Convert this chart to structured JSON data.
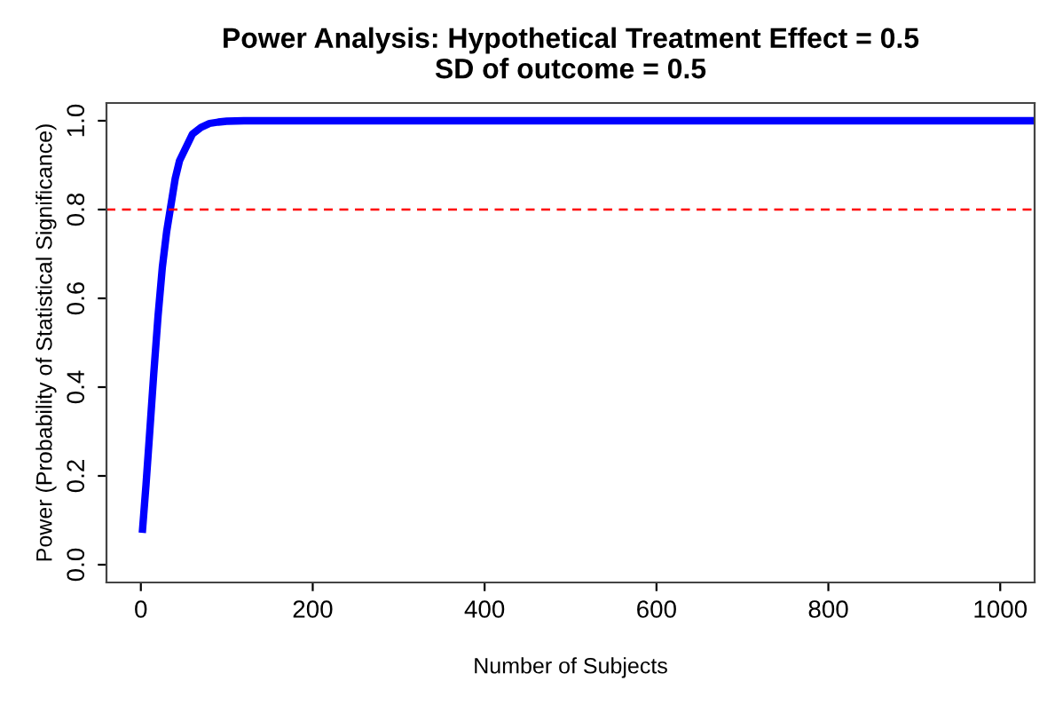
{
  "chart_data": {
    "type": "line",
    "title": "Power Analysis: Hypothetical Treatment Effect = 0.5\nSD of outcome = 0.5",
    "xlabel": "Number of Subjects",
    "ylabel": "Power (Probability of Statistical Significance)",
    "x": [
      2,
      6,
      10,
      15,
      20,
      25,
      30,
      35,
      40,
      45,
      50,
      60,
      70,
      80,
      90,
      100,
      120,
      150,
      200,
      300,
      400,
      600,
      800,
      1000,
      1040
    ],
    "series": [
      {
        "color": "#0000ff",
        "values": [
          0.08,
          0.18,
          0.29,
          0.43,
          0.56,
          0.67,
          0.75,
          0.81,
          0.87,
          0.91,
          0.93,
          0.97,
          0.985,
          0.994,
          0.997,
          0.999,
          1.0,
          1.0,
          1.0,
          1.0,
          1.0,
          1.0,
          1.0,
          1.0,
          1.0
        ]
      }
    ],
    "xlim": [
      -40,
      1040
    ],
    "ylim": [
      -0.04,
      1.04
    ],
    "xticks": [
      0,
      200,
      400,
      600,
      800,
      1000
    ],
    "yticks": [
      {
        "value": 0,
        "label": "0.0"
      },
      0.2,
      0.4,
      0.6,
      0.8,
      {
        "value": 1,
        "label": "1.0"
      }
    ],
    "ref_lines": [
      {
        "axis": "y",
        "value": 0.8,
        "color": "#ff0000",
        "line_style": "dashed"
      }
    ],
    "grid": false,
    "legend": false,
    "marker": "none",
    "line_style": "solid"
  }
}
